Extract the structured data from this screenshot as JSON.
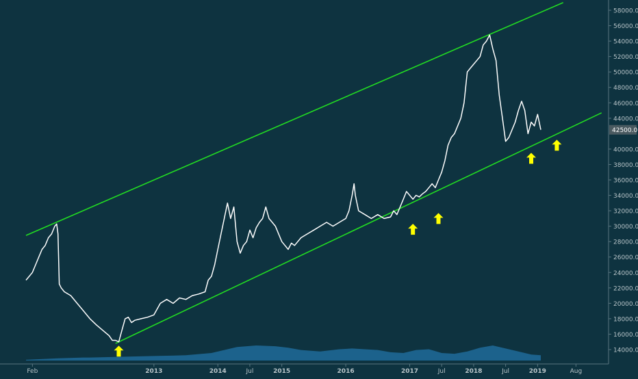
{
  "chart_data": {
    "type": "line",
    "title": "",
    "xlabel": "",
    "ylabel": "",
    "ylim": [
      13000,
      59000
    ],
    "grid": false,
    "legend": "none",
    "background_color": "#0e3340",
    "price_color": "#ffffff",
    "channel_color": "#22dd22",
    "volume_color": "#1e6b9a",
    "arrow_color": "#ffff00",
    "x_ticks": [
      {
        "label": "Feb",
        "t": 2011.1
      },
      {
        "label": "2013",
        "t": 2013.0
      },
      {
        "label": "2014",
        "t": 2014.0
      },
      {
        "label": "Jul",
        "t": 2014.5
      },
      {
        "label": "2015",
        "t": 2015.0
      },
      {
        "label": "2016",
        "t": 2016.0
      },
      {
        "label": "2017",
        "t": 2017.0
      },
      {
        "label": "Jul",
        "t": 2017.5
      },
      {
        "label": "2018",
        "t": 2018.0
      },
      {
        "label": "Jul",
        "t": 2018.5
      },
      {
        "label": "2019",
        "t": 2019.0
      },
      {
        "label": "Aug",
        "t": 2019.6
      }
    ],
    "y_ticks": [
      "58000.0",
      "56000.0",
      "54000.0",
      "52000.0",
      "50000.0",
      "48000.0",
      "46000.0",
      "44000.0",
      "40000.0",
      "38000.0",
      "36000.0",
      "34000.0",
      "32000.0",
      "30000.0",
      "28000.0",
      "26000.0",
      "24000.0",
      "22000.0",
      "20000.0",
      "18000.0",
      "16000.0",
      "14000.0"
    ],
    "last_price_label": "42500.0",
    "last_price": 42500,
    "series": [
      {
        "points": [
          [
            2011.0,
            23000
          ],
          [
            2011.05,
            23500
          ],
          [
            2011.1,
            24000
          ],
          [
            2011.15,
            25000
          ],
          [
            2011.2,
            26000
          ],
          [
            2011.25,
            27000
          ],
          [
            2011.3,
            27500
          ],
          [
            2011.35,
            28500
          ],
          [
            2011.4,
            29000
          ],
          [
            2011.45,
            30000
          ],
          [
            2011.48,
            30300
          ],
          [
            2011.5,
            29000
          ],
          [
            2011.52,
            22500
          ],
          [
            2011.55,
            22000
          ],
          [
            2011.6,
            21500
          ],
          [
            2011.7,
            21000
          ],
          [
            2011.8,
            20000
          ],
          [
            2011.9,
            19000
          ],
          [
            2012.0,
            18000
          ],
          [
            2012.1,
            17200
          ],
          [
            2012.2,
            16500
          ],
          [
            2012.3,
            15800
          ],
          [
            2012.35,
            15200
          ],
          [
            2012.4,
            15200
          ],
          [
            2012.45,
            15000
          ],
          [
            2012.5,
            16500
          ],
          [
            2012.55,
            18000
          ],
          [
            2012.6,
            18200
          ],
          [
            2012.65,
            17500
          ],
          [
            2012.7,
            17800
          ],
          [
            2012.8,
            18000
          ],
          [
            2012.9,
            18200
          ],
          [
            2013.0,
            18500
          ],
          [
            2013.1,
            20000
          ],
          [
            2013.2,
            20500
          ],
          [
            2013.3,
            20000
          ],
          [
            2013.4,
            20700
          ],
          [
            2013.5,
            20500
          ],
          [
            2013.6,
            21000
          ],
          [
            2013.7,
            21200
          ],
          [
            2013.8,
            21500
          ],
          [
            2013.85,
            23000
          ],
          [
            2013.9,
            23500
          ],
          [
            2013.95,
            25000
          ],
          [
            2014.0,
            27000
          ],
          [
            2014.05,
            29000
          ],
          [
            2014.1,
            31000
          ],
          [
            2014.15,
            33000
          ],
          [
            2014.2,
            31000
          ],
          [
            2014.25,
            32500
          ],
          [
            2014.3,
            28000
          ],
          [
            2014.35,
            26500
          ],
          [
            2014.4,
            27500
          ],
          [
            2014.45,
            28000
          ],
          [
            2014.5,
            29500
          ],
          [
            2014.55,
            28500
          ],
          [
            2014.6,
            29800
          ],
          [
            2014.65,
            30500
          ],
          [
            2014.7,
            31000
          ],
          [
            2014.75,
            32500
          ],
          [
            2014.8,
            31000
          ],
          [
            2014.85,
            30500
          ],
          [
            2014.9,
            30000
          ],
          [
            2014.95,
            29000
          ],
          [
            2015.0,
            28000
          ],
          [
            2015.05,
            27500
          ],
          [
            2015.1,
            27000
          ],
          [
            2015.15,
            27800
          ],
          [
            2015.2,
            27500
          ],
          [
            2015.3,
            28500
          ],
          [
            2015.4,
            29000
          ],
          [
            2015.5,
            29500
          ],
          [
            2015.6,
            30000
          ],
          [
            2015.7,
            30500
          ],
          [
            2015.8,
            30000
          ],
          [
            2015.9,
            30500
          ],
          [
            2016.0,
            31000
          ],
          [
            2016.05,
            32000
          ],
          [
            2016.1,
            34000
          ],
          [
            2016.13,
            35500
          ],
          [
            2016.15,
            34000
          ],
          [
            2016.2,
            32000
          ],
          [
            2016.3,
            31500
          ],
          [
            2016.4,
            31000
          ],
          [
            2016.5,
            31500
          ],
          [
            2016.6,
            31000
          ],
          [
            2016.7,
            31200
          ],
          [
            2016.75,
            32000
          ],
          [
            2016.8,
            31500
          ],
          [
            2016.85,
            32500
          ],
          [
            2016.9,
            33500
          ],
          [
            2016.95,
            34500
          ],
          [
            2017.0,
            34000
          ],
          [
            2017.05,
            33500
          ],
          [
            2017.1,
            34000
          ],
          [
            2017.15,
            33800
          ],
          [
            2017.2,
            34200
          ],
          [
            2017.25,
            34500
          ],
          [
            2017.3,
            35000
          ],
          [
            2017.35,
            35500
          ],
          [
            2017.4,
            35000
          ],
          [
            2017.45,
            36000
          ],
          [
            2017.5,
            37000
          ],
          [
            2017.55,
            38500
          ],
          [
            2017.6,
            40500
          ],
          [
            2017.65,
            41500
          ],
          [
            2017.7,
            42000
          ],
          [
            2017.75,
            43000
          ],
          [
            2017.8,
            44000
          ],
          [
            2017.85,
            46000
          ],
          [
            2017.9,
            50000
          ],
          [
            2017.95,
            50500
          ],
          [
            2018.0,
            51000
          ],
          [
            2018.05,
            51500
          ],
          [
            2018.1,
            52000
          ],
          [
            2018.15,
            53500
          ],
          [
            2018.2,
            54000
          ],
          [
            2018.25,
            54800
          ],
          [
            2018.3,
            53000
          ],
          [
            2018.35,
            51500
          ],
          [
            2018.4,
            47000
          ],
          [
            2018.45,
            44000
          ],
          [
            2018.5,
            41000
          ],
          [
            2018.55,
            41500
          ],
          [
            2018.6,
            42500
          ],
          [
            2018.65,
            43500
          ],
          [
            2018.7,
            45000
          ],
          [
            2018.75,
            46200
          ],
          [
            2018.8,
            45000
          ],
          [
            2018.85,
            42000
          ],
          [
            2018.9,
            43500
          ],
          [
            2018.95,
            43000
          ],
          [
            2019.0,
            44500
          ],
          [
            2019.05,
            42500
          ]
        ]
      }
    ],
    "channel_lines": [
      {
        "name": "upper",
        "points": [
          [
            2011.0,
            28800
          ],
          [
            2019.4,
            59000
          ]
        ]
      },
      {
        "name": "lower",
        "points": [
          [
            2012.4,
            14800
          ],
          [
            2020.0,
            44700
          ]
        ]
      }
    ],
    "arrows": [
      {
        "t": 2012.45,
        "value": 13800
      },
      {
        "t": 2017.05,
        "value": 29600
      },
      {
        "t": 2017.45,
        "value": 31000
      },
      {
        "t": 2018.9,
        "value": 38800
      },
      {
        "t": 2019.3,
        "value": 40500
      }
    ],
    "volume": {
      "t": [
        2011.0,
        2011.5,
        2011.9,
        2012.0,
        2012.5,
        2013.0,
        2013.5,
        2013.9,
        2014.1,
        2014.3,
        2014.6,
        2014.9,
        2015.1,
        2015.3,
        2015.6,
        2015.9,
        2016.1,
        2016.3,
        2016.5,
        2016.7,
        2016.9,
        2017.1,
        2017.3,
        2017.5,
        2017.7,
        2017.9,
        2018.1,
        2018.3,
        2018.5,
        2018.7,
        2018.9,
        2019.05
      ],
      "values": [
        0.05,
        0.15,
        0.2,
        0.2,
        0.25,
        0.3,
        0.35,
        0.5,
        0.7,
        0.9,
        1.0,
        0.95,
        0.85,
        0.7,
        0.6,
        0.75,
        0.8,
        0.75,
        0.7,
        0.55,
        0.5,
        0.7,
        0.75,
        0.5,
        0.45,
        0.6,
        0.85,
        1.0,
        0.8,
        0.6,
        0.4,
        0.35
      ]
    }
  }
}
